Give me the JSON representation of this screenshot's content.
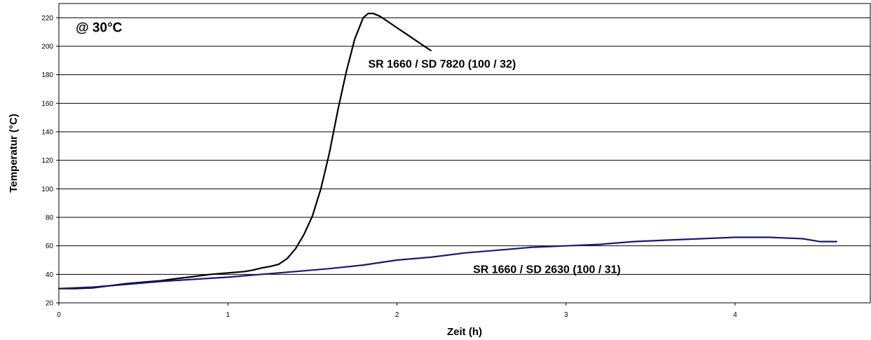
{
  "chart_data": {
    "type": "line",
    "xlabel": "Zeit (h)",
    "ylabel": "Temperatur  (°C)",
    "xlim": [
      0,
      4.8
    ],
    "ylim": [
      20,
      230
    ],
    "x_ticks": [
      "0",
      "1",
      "2",
      "3",
      "4"
    ],
    "y_ticks": [
      "20",
      "40",
      "60",
      "80",
      "100",
      "120",
      "140",
      "160",
      "180",
      "200",
      "220"
    ],
    "grid": "horizontal",
    "annotations": [
      {
        "text": "@ 30°C",
        "x": 0.1,
        "y": 210
      }
    ],
    "series": [
      {
        "name": "SR 1660 / SD 7820 (100 / 32)",
        "color": "#000000",
        "label_at": {
          "x": 1.83,
          "y": 185
        },
        "x": [
          0,
          0.1,
          0.2,
          0.3,
          0.4,
          0.5,
          0.6,
          0.7,
          0.8,
          0.9,
          1.0,
          1.1,
          1.15,
          1.2,
          1.25,
          1.3,
          1.35,
          1.4,
          1.45,
          1.5,
          1.55,
          1.6,
          1.65,
          1.7,
          1.75,
          1.8,
          1.83,
          1.86,
          1.9,
          1.95,
          2.0,
          2.05,
          2.1,
          2.15,
          2.2
        ],
        "y": [
          30,
          30,
          30.5,
          32,
          33.5,
          34.5,
          35.5,
          37,
          38.5,
          40,
          41,
          42,
          43,
          44.5,
          45.5,
          47,
          51,
          58,
          68,
          81,
          100,
          125,
          155,
          182,
          205,
          220,
          223,
          223,
          221,
          217,
          213,
          209,
          205,
          201,
          197
        ]
      },
      {
        "name": "SR 1660 / SD 2630 (100 / 31)",
        "color": "#1a1a6e",
        "label_at": {
          "x": 2.45,
          "y": 41
        },
        "x": [
          0,
          0.2,
          0.4,
          0.6,
          0.8,
          1.0,
          1.2,
          1.4,
          1.6,
          1.8,
          2.0,
          2.2,
          2.4,
          2.6,
          2.8,
          3.0,
          3.2,
          3.4,
          3.6,
          3.8,
          4.0,
          4.2,
          4.4,
          4.5,
          4.6
        ],
        "y": [
          30,
          31,
          33,
          35,
          36.5,
          38,
          40,
          42,
          44,
          46.5,
          50,
          52,
          55,
          57,
          59,
          60,
          61,
          63,
          64,
          65,
          66,
          66,
          65,
          63,
          63
        ]
      }
    ]
  }
}
